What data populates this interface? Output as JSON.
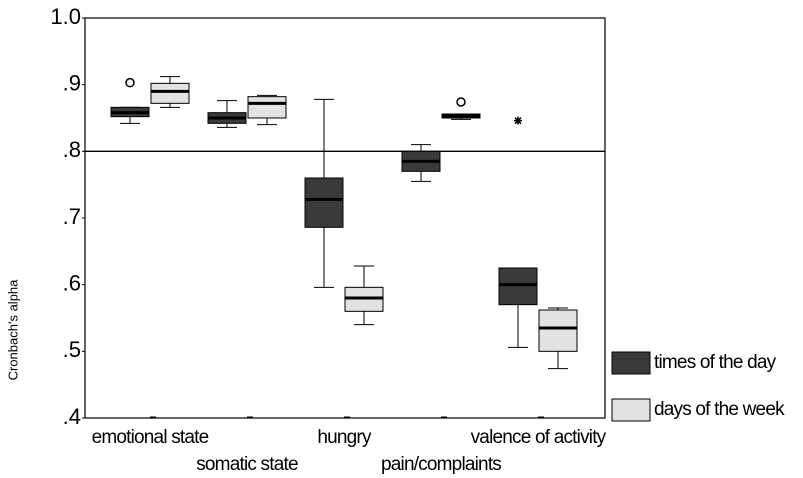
{
  "chart_data": {
    "type": "boxplot",
    "y_label": "Cronbach's alpha",
    "categories": [
      "emotional state",
      "somatic state",
      "hungry",
      "pain/complaints",
      "valence of activity"
    ],
    "ylim": [
      0.4,
      1.0
    ],
    "yticks": [
      {
        "value": 0.4,
        "label": ".4"
      },
      {
        "value": 0.5,
        "label": ".5"
      },
      {
        "value": 0.6,
        "label": ".6"
      },
      {
        "value": 0.7,
        "label": ".7"
      },
      {
        "value": 0.8,
        "label": ".8"
      },
      {
        "value": 0.9,
        "label": ".9"
      },
      {
        "value": 1.0,
        "label": "1.0"
      }
    ],
    "reference_line": 0.8,
    "legend": "right",
    "series": [
      {
        "name": "times of the day",
        "color": "#3a3a3a",
        "boxes": [
          {
            "min": 0.842,
            "q1": 0.852,
            "median": 0.858,
            "q3": 0.866,
            "max": 0.866,
            "outliers": [
              0.903
            ]
          },
          {
            "min": 0.836,
            "q1": 0.842,
            "median": 0.85,
            "q3": 0.858,
            "max": 0.876
          },
          {
            "min": 0.596,
            "q1": 0.686,
            "median": 0.728,
            "q3": 0.76,
            "max": 0.878
          },
          {
            "min": 0.755,
            "q1": 0.77,
            "median": 0.785,
            "q3": 0.8,
            "max": 0.81
          },
          {
            "min": 0.506,
            "q1": 0.57,
            "median": 0.6,
            "q3": 0.625,
            "max": 0.625,
            "extremes": [
              0.846
            ]
          }
        ]
      },
      {
        "name": "days of the week",
        "color": "#e2e2e2",
        "boxes": [
          {
            "min": 0.866,
            "q1": 0.872,
            "median": 0.89,
            "q3": 0.902,
            "max": 0.912
          },
          {
            "min": 0.84,
            "q1": 0.85,
            "median": 0.872,
            "q3": 0.882,
            "max": 0.884
          },
          {
            "min": 0.54,
            "q1": 0.56,
            "median": 0.58,
            "q3": 0.596,
            "max": 0.628
          },
          {
            "min": 0.848,
            "q1": 0.85,
            "median": 0.853,
            "q3": 0.856,
            "max": 0.856,
            "outliers": [
              0.874
            ]
          },
          {
            "min": 0.474,
            "q1": 0.5,
            "median": 0.535,
            "q3": 0.562,
            "max": 0.565
          }
        ]
      }
    ]
  }
}
